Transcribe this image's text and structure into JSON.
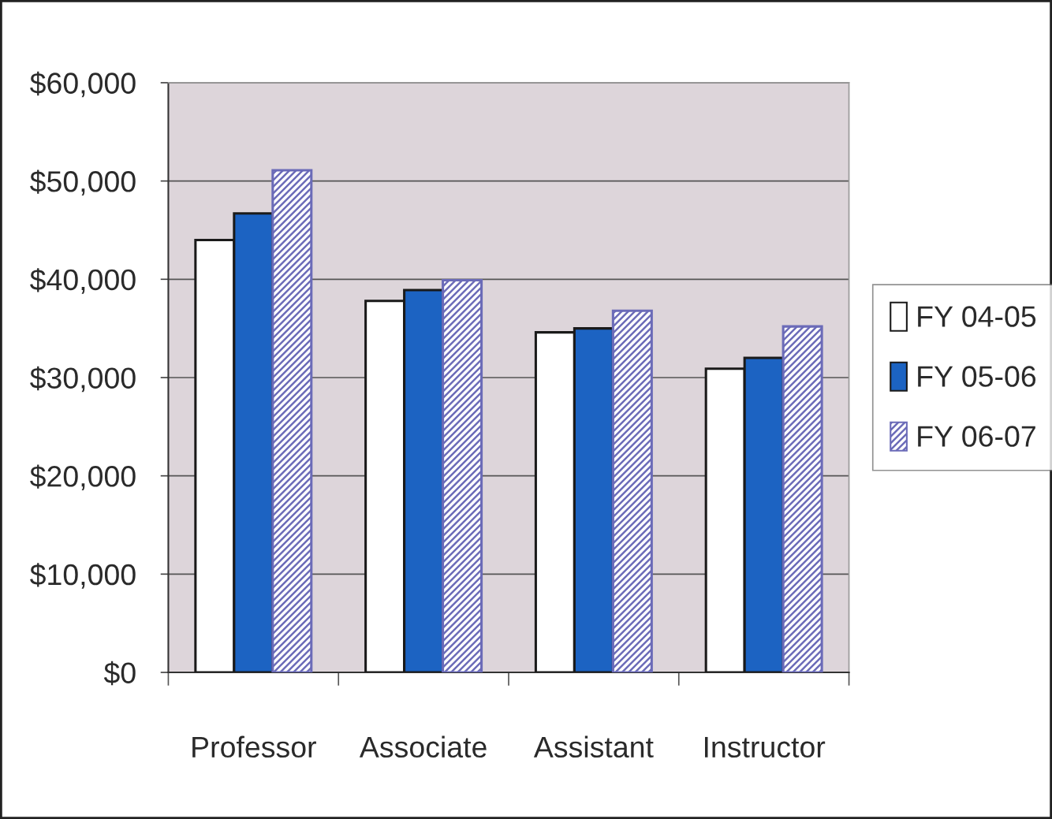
{
  "chart_data": {
    "type": "bar",
    "categories": [
      "Professor",
      "Associate",
      "Assistant",
      "Instructor"
    ],
    "series": [
      {
        "name": "FY 04-05",
        "color": "#ffffff",
        "values": [
          44000,
          37800,
          34600,
          30900
        ]
      },
      {
        "name": "FY 05-06",
        "color": "#1c63c2",
        "values": [
          46700,
          38900,
          35000,
          32000
        ]
      },
      {
        "name": "FY 06-07",
        "color": "#6b6bb8",
        "values": [
          51100,
          39900,
          36800,
          35200
        ]
      }
    ],
    "ylim": [
      0,
      60000
    ],
    "yticks": [
      {
        "value": 0,
        "label": "$0"
      },
      {
        "value": 10000,
        "label": "$10,000"
      },
      {
        "value": 20000,
        "label": "$20,000"
      },
      {
        "value": 30000,
        "label": "$30,000"
      },
      {
        "value": 40000,
        "label": "$40,000"
      },
      {
        "value": 50000,
        "label": "$50,000"
      },
      {
        "value": 60000,
        "label": "$60,000"
      }
    ],
    "grid": "y",
    "legend": "right"
  }
}
